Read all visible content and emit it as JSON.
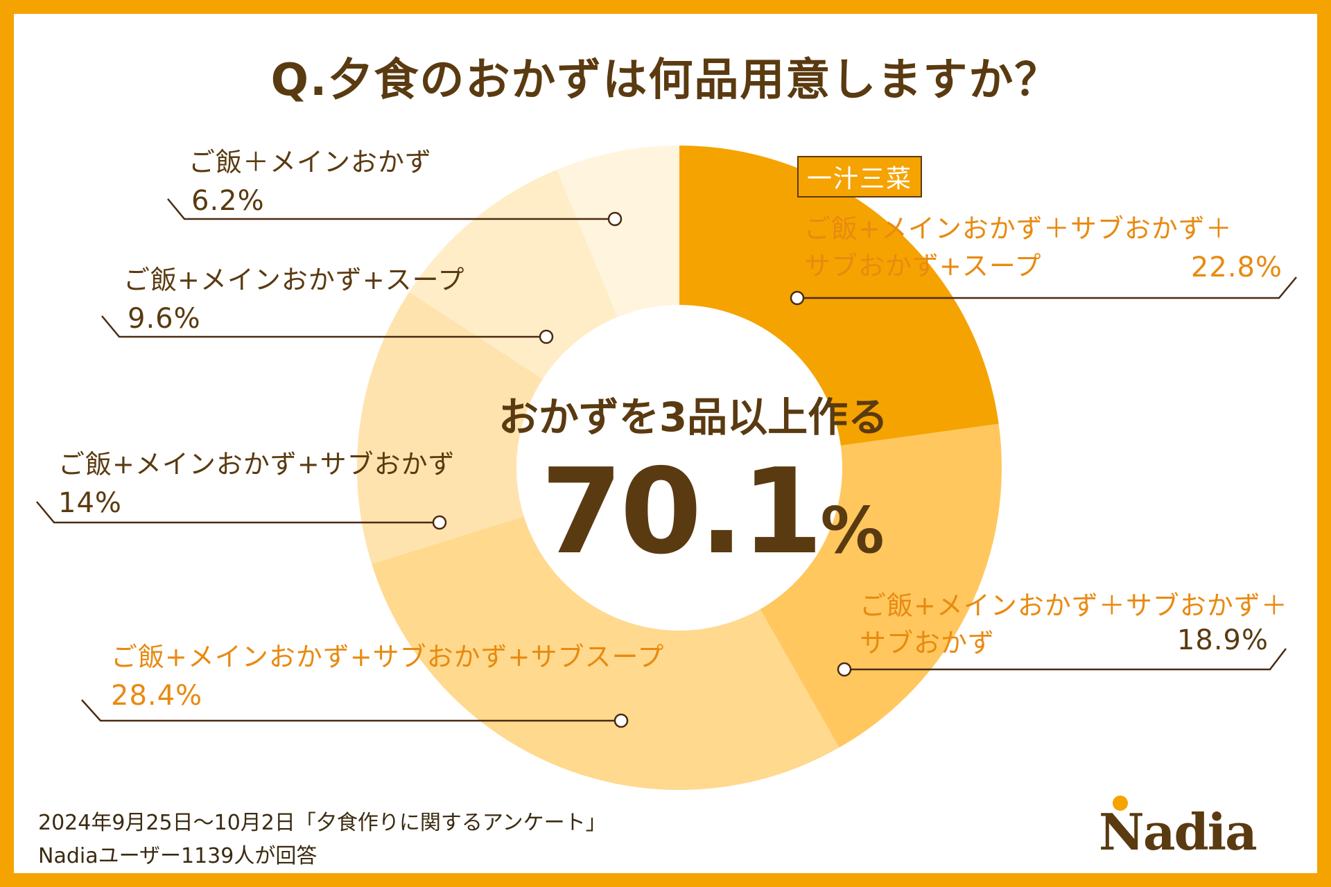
{
  "title": "Q.夕食のおかずは何品用意しますか？",
  "tag": "一汁三菜",
  "center": {
    "label": "おかずを3品以上作る",
    "value": "70.1",
    "unit": "%"
  },
  "footer": {
    "line1": "2024年9月25日〜10月2日「夕食作りに関するアンケート」",
    "line2": "Nadiaユーザー1139人が回答"
  },
  "logo": "Nadia",
  "colors": {
    "frame": "#F5A300",
    "text": "#5A3A10",
    "accent": "#E88A10"
  },
  "chart_data": {
    "type": "pie",
    "donut": true,
    "title": "Q.夕食のおかずは何品用意しますか？",
    "unit": "%",
    "slices": [
      {
        "name": "ご飯+メインおかず＋サブおかず＋サブおかず+スープ",
        "line1": "ご飯+メインおかず＋サブおかず＋",
        "line2": "サブおかず+スープ",
        "value": 22.8,
        "label": "22.8%",
        "color": "#F5A300"
      },
      {
        "name": "ご飯+メインおかず＋サブおかず＋サブおかず",
        "line1": "ご飯+メインおかず＋サブおかず＋",
        "line2": "サブおかず",
        "value": 18.9,
        "label": "18.9%",
        "color": "#FFC75E"
      },
      {
        "name": "ご飯+メインおかず+サブおかず+サブスープ",
        "line1": "ご飯+メインおかず+サブおかず+サブスープ",
        "value": 28.4,
        "label": "28.4%",
        "color": "#FFD98E"
      },
      {
        "name": "ご飯+メインおかず+サブおかず",
        "line1": "ご飯+メインおかず+サブおかず",
        "value": 14,
        "label": "14%",
        "color": "#FFE3AE"
      },
      {
        "name": "ご飯+メインおかず+スープ",
        "line1": "ご飯+メインおかず+スープ",
        "value": 9.6,
        "label": "9.6%",
        "color": "#FFEDC8"
      },
      {
        "name": "ご飯＋メインおかず",
        "line1": "ご飯＋メインおかず",
        "value": 6.2,
        "label": "6.2%",
        "color": "#FFF4DE"
      }
    ]
  }
}
